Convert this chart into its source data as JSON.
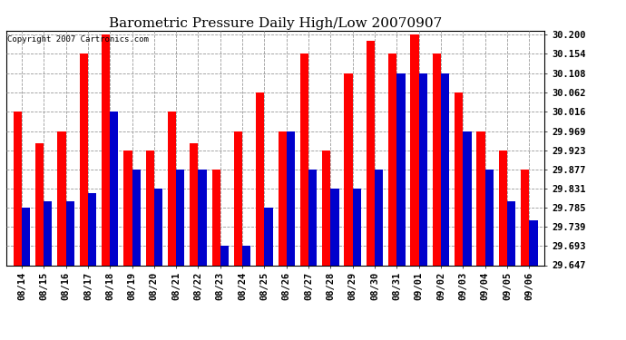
{
  "title": "Barometric Pressure Daily High/Low 20070907",
  "copyright": "Copyright 2007 Cartronics.com",
  "categories": [
    "08/14",
    "08/15",
    "08/16",
    "08/17",
    "08/18",
    "08/19",
    "08/20",
    "08/21",
    "08/22",
    "08/23",
    "08/24",
    "08/25",
    "08/26",
    "08/27",
    "08/28",
    "08/29",
    "08/30",
    "08/31",
    "09/01",
    "09/02",
    "09/03",
    "09/04",
    "09/05",
    "09/06"
  ],
  "highs": [
    30.016,
    29.94,
    29.969,
    30.154,
    30.2,
    29.923,
    29.923,
    30.016,
    29.94,
    29.877,
    29.969,
    30.062,
    29.969,
    30.154,
    29.923,
    30.108,
    30.185,
    30.154,
    30.2,
    30.154,
    30.062,
    29.969,
    29.923,
    29.877
  ],
  "lows": [
    29.785,
    29.8,
    29.8,
    29.82,
    30.016,
    29.877,
    29.831,
    29.877,
    29.877,
    29.693,
    29.693,
    29.785,
    29.969,
    29.877,
    29.831,
    29.831,
    29.877,
    30.108,
    30.108,
    30.108,
    29.969,
    29.877,
    29.8,
    29.754
  ],
  "ylim_min": 29.647,
  "ylim_max": 30.21,
  "yticks": [
    30.2,
    30.154,
    30.108,
    30.062,
    30.016,
    29.969,
    29.923,
    29.877,
    29.831,
    29.785,
    29.739,
    29.693,
    29.647
  ],
  "high_color": "#ff0000",
  "low_color": "#0000cc",
  "bg_color": "#ffffff",
  "grid_color": "#999999",
  "title_fontsize": 11,
  "tick_fontsize": 7.5,
  "bar_width": 0.38
}
